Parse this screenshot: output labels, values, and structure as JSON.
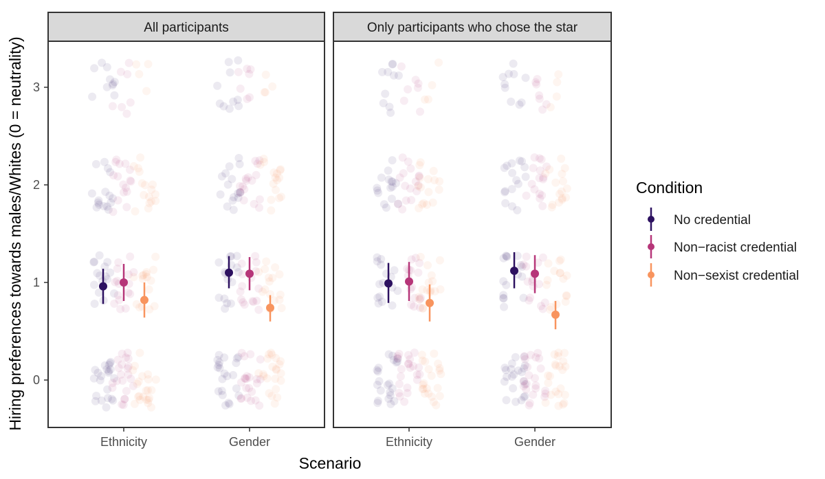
{
  "chart_data": {
    "type": "scatter",
    "xlabel": "Scenario",
    "ylabel": "Hiring preferences towards males/Whites (0 = neutrality)",
    "categories": [
      "Ethnicity",
      "Gender"
    ],
    "y_ticks": [
      "0",
      "1",
      "2",
      "3"
    ],
    "ylim": [
      -0.5,
      3.5
    ],
    "grid": false,
    "legend": {
      "title": "Condition",
      "position": "right",
      "entries": [
        "No credential",
        "Non−racist credential",
        "Non−sexist credential"
      ]
    },
    "colors": {
      "no_credential": "#2d1160",
      "non_racist": "#b63679",
      "non_sexist": "#f8945e",
      "strip": "#d9d9d9",
      "frame": "#333333"
    },
    "panels": [
      {
        "title": "All participants",
        "series": [
          {
            "name": "No credential",
            "values": [
              0.96,
              1.1
            ],
            "lower": [
              0.78,
              0.94
            ],
            "upper": [
              1.14,
              1.27
            ]
          },
          {
            "name": "Non−racist credential",
            "values": [
              1.0,
              1.09
            ],
            "lower": [
              0.81,
              0.92
            ],
            "upper": [
              1.19,
              1.26
            ]
          },
          {
            "name": "Non−sexist credential",
            "values": [
              0.82,
              0.74
            ],
            "lower": [
              0.64,
              0.6
            ],
            "upper": [
              1.0,
              0.87
            ]
          }
        ]
      },
      {
        "title": "Only participants who chose the star",
        "series": [
          {
            "name": "No credential",
            "values": [
              0.99,
              1.12
            ],
            "lower": [
              0.79,
              0.94
            ],
            "upper": [
              1.2,
              1.31
            ]
          },
          {
            "name": "Non−racist credential",
            "values": [
              1.01,
              1.09
            ],
            "lower": [
              0.81,
              0.89
            ],
            "upper": [
              1.21,
              1.28
            ]
          },
          {
            "name": "Non−sexist credential",
            "values": [
              0.79,
              0.67
            ],
            "lower": [
              0.6,
              0.52
            ],
            "upper": [
              0.98,
              0.81
            ]
          }
        ]
      }
    ]
  }
}
